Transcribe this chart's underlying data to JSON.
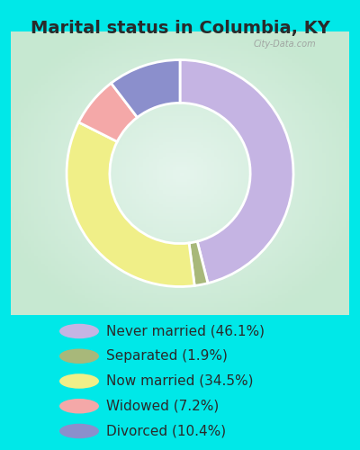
{
  "title": "Marital status in Columbia, KY",
  "slices": [
    46.1,
    1.9,
    34.5,
    7.2,
    10.4
  ],
  "labels": [
    "Never married (46.1%)",
    "Separated (1.9%)",
    "Now married (34.5%)",
    "Widowed (7.2%)",
    "Divorced (10.4%)"
  ],
  "colors": [
    "#c5b4e3",
    "#a8b87a",
    "#f0ef88",
    "#f4a8a8",
    "#8b8fcc"
  ],
  "background_outer": "#00e8e8",
  "title_fontsize": 14,
  "title_color": "#2a2a2a",
  "watermark": "City-Data.com",
  "legend_fontsize": 11,
  "legend_text_color": "#2a2a2a",
  "donut_width": 0.38,
  "start_angle": 90
}
